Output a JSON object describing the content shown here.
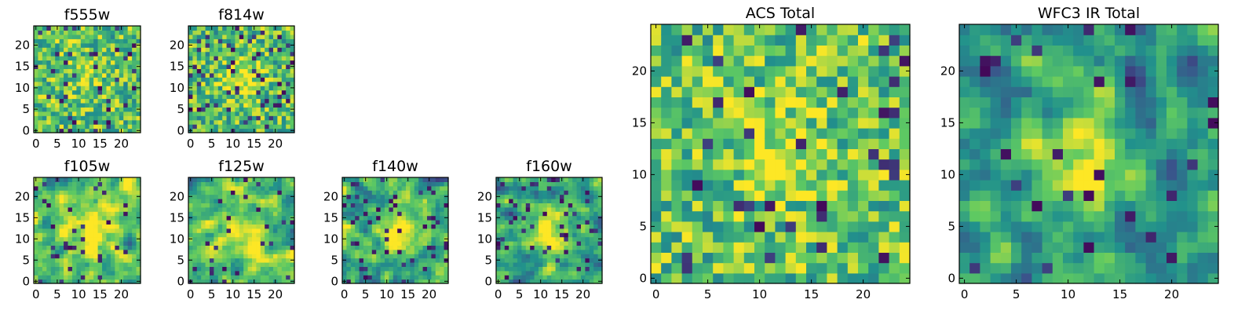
{
  "figure": {
    "colormap": "viridis",
    "colormap_stops": [
      "#440154",
      "#3b528b",
      "#21918c",
      "#5ec962",
      "#fde725"
    ],
    "axis_frame_color": "#000000"
  },
  "chart_data": [
    {
      "type": "heatmap",
      "title": "f555w",
      "xlim": [
        0,
        24
      ],
      "ylim": [
        0,
        24
      ],
      "xticks": [
        "0",
        "5",
        "10",
        "15",
        "20"
      ],
      "yticks": [
        "0",
        "5",
        "10",
        "15",
        "20"
      ],
      "grid_size": 25,
      "texture": "noise",
      "bright_center": [
        12,
        13
      ],
      "bright_radius": 3,
      "bright_strength": 0.15,
      "dark_fraction": 0.07,
      "base_level": 0.72,
      "seed": 11
    },
    {
      "type": "heatmap",
      "title": "f814w",
      "xlim": [
        0,
        24
      ],
      "ylim": [
        0,
        24
      ],
      "xticks": [
        "0",
        "5",
        "10",
        "15",
        "20"
      ],
      "yticks": [
        "0",
        "5",
        "10",
        "15",
        "20"
      ],
      "grid_size": 25,
      "texture": "noise",
      "bright_center": [
        12,
        12
      ],
      "bright_radius": 3,
      "bright_strength": 0.3,
      "dark_fraction": 0.08,
      "base_level": 0.7,
      "seed": 23
    },
    {
      "type": "heatmap",
      "title": "f105w",
      "xlim": [
        0,
        24
      ],
      "ylim": [
        0,
        24
      ],
      "xticks": [
        "0",
        "5",
        "10",
        "15",
        "20"
      ],
      "yticks": [
        "0",
        "5",
        "10",
        "15",
        "20"
      ],
      "grid_size": 25,
      "texture": "smooth",
      "bright_center": [
        12,
        12
      ],
      "bright_radius": 4,
      "bright_strength": 0.3,
      "dark_fraction": 0.05,
      "base_level": 0.7,
      "seed": 37
    },
    {
      "type": "heatmap",
      "title": "f125w",
      "xlim": [
        0,
        24
      ],
      "ylim": [
        0,
        24
      ],
      "xticks": [
        "0",
        "5",
        "10",
        "15",
        "20"
      ],
      "yticks": [
        "0",
        "5",
        "10",
        "15",
        "20"
      ],
      "grid_size": 25,
      "texture": "smooth",
      "bright_center": [
        12,
        12
      ],
      "bright_radius": 4,
      "bright_strength": 0.3,
      "dark_fraction": 0.06,
      "base_level": 0.68,
      "seed": 41
    },
    {
      "type": "heatmap",
      "title": "f140w",
      "xlim": [
        0,
        24
      ],
      "ylim": [
        0,
        24
      ],
      "xticks": [
        "0",
        "5",
        "10",
        "15",
        "20"
      ],
      "yticks": [
        "0",
        "5",
        "10",
        "15",
        "20"
      ],
      "grid_size": 25,
      "texture": "smooth",
      "bright_center": [
        13,
        12
      ],
      "bright_radius": 4,
      "bright_strength": 0.35,
      "dark_fraction": 0.07,
      "base_level": 0.62,
      "seed": 53
    },
    {
      "type": "heatmap",
      "title": "f160w",
      "xlim": [
        0,
        24
      ],
      "ylim": [
        0,
        24
      ],
      "xticks": [
        "0",
        "5",
        "10",
        "15",
        "20"
      ],
      "yticks": [
        "0",
        "5",
        "10",
        "15",
        "20"
      ],
      "grid_size": 25,
      "texture": "smooth",
      "bright_center": [
        13,
        12
      ],
      "bright_radius": 4,
      "bright_strength": 0.35,
      "dark_fraction": 0.08,
      "base_level": 0.58,
      "seed": 67
    },
    {
      "type": "heatmap",
      "title": "ACS Total",
      "xlim": [
        0,
        24
      ],
      "ylim": [
        0,
        24
      ],
      "xticks": [
        "0",
        "5",
        "10",
        "15",
        "20"
      ],
      "yticks": [
        "0",
        "5",
        "10",
        "15",
        "20"
      ],
      "grid_size": 25,
      "texture": "noise",
      "bright_center": [
        12,
        12
      ],
      "bright_radius": 3,
      "bright_strength": 0.25,
      "dark_fraction": 0.05,
      "base_level": 0.72,
      "seed": 79
    },
    {
      "type": "heatmap",
      "title": "WFC3 IR Total",
      "xlim": [
        0,
        24
      ],
      "ylim": [
        0,
        24
      ],
      "xticks": [
        "0",
        "5",
        "10",
        "15",
        "20"
      ],
      "yticks": [
        "0",
        "5",
        "10",
        "15",
        "20"
      ],
      "grid_size": 25,
      "texture": "smooth",
      "bright_center": [
        12,
        12
      ],
      "bright_radius": 4,
      "bright_strength": 0.42,
      "dark_fraction": 0.05,
      "base_level": 0.52,
      "seed": 97
    }
  ]
}
